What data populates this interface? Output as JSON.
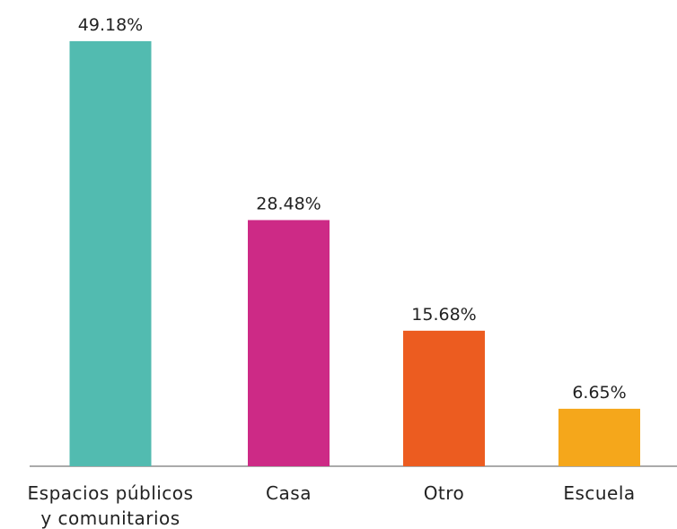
{
  "chart_data": {
    "type": "bar",
    "categories": [
      "Espacios públicos y comunitarios",
      "Casa",
      "Otro",
      "Escuela"
    ],
    "values": [
      49.18,
      28.48,
      15.68,
      6.65
    ],
    "value_labels": [
      "49.18%",
      "28.48%",
      "15.68%",
      "6.65%"
    ],
    "colors": [
      "#52bbb0",
      "#cd2a86",
      "#ec5c20",
      "#f5a71b"
    ]
  }
}
